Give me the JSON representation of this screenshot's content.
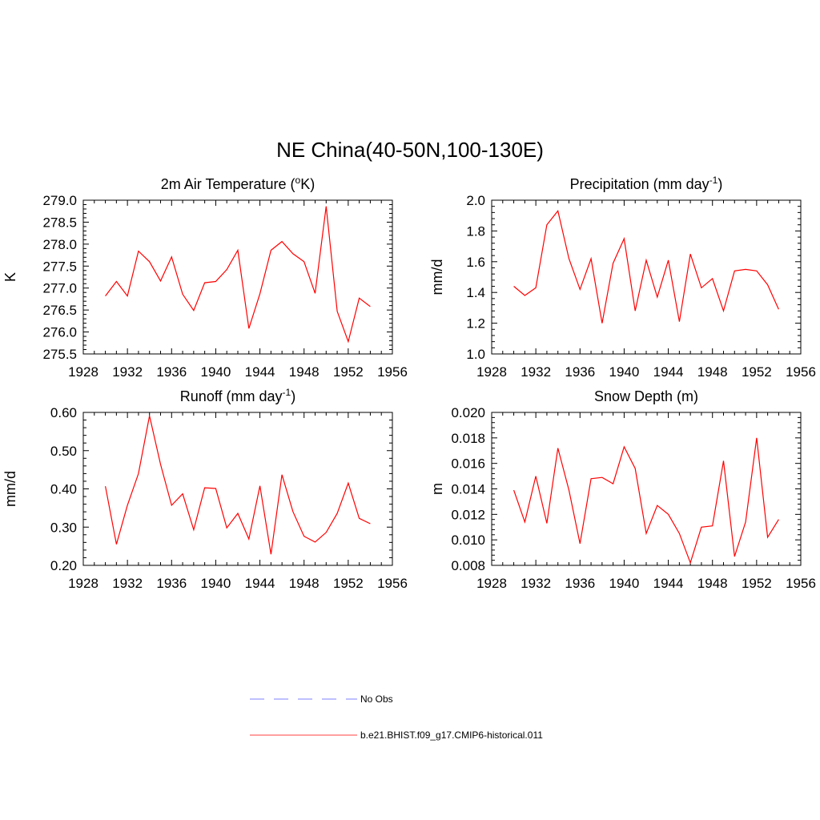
{
  "figure": {
    "title": "NE China(40-50N,100-130E)"
  },
  "legend": [
    {
      "label": "No Obs",
      "color": "#9999ff",
      "style": "dashed"
    },
    {
      "label": "b.e21.BHIST.f09_g17.CMIP6-historical.011",
      "color": "#ff0000",
      "style": "solid"
    }
  ],
  "chart_data": [
    {
      "type": "line",
      "title": "2m Air Temperature (",
      "title_sup": "o",
      "title_tail": "K)",
      "ylabel": "K",
      "xlim": [
        1928,
        1956
      ],
      "ylim": [
        275.5,
        279.0
      ],
      "xticks": [
        1928,
        1932,
        1936,
        1940,
        1944,
        1948,
        1952,
        1956
      ],
      "xtick_labels": [
        "1928",
        "1932",
        "1936",
        "1940",
        "1944",
        "1948",
        "1952",
        "1956"
      ],
      "yticks": [
        275.5,
        276.0,
        276.5,
        277.0,
        277.5,
        278.0,
        278.5,
        279.0
      ],
      "ytick_labels": [
        "275.5",
        "276.0",
        "276.5",
        "277.0",
        "277.5",
        "278.0",
        "278.5",
        "279.0"
      ],
      "series": [
        {
          "name": "b.e21.BHIST.f09_g17.CMIP6-historical.011",
          "color": "#ff0000",
          "x": [
            1930,
            1931,
            1932,
            1933,
            1934,
            1935,
            1936,
            1937,
            1938,
            1939,
            1940,
            1941,
            1942,
            1943,
            1944,
            1945,
            1946,
            1947,
            1948,
            1949,
            1950,
            1951,
            1952,
            1953,
            1954
          ],
          "values": [
            276.82,
            277.15,
            276.82,
            277.84,
            277.6,
            277.16,
            277.71,
            276.86,
            276.49,
            277.12,
            277.15,
            277.42,
            277.86,
            276.08,
            276.87,
            277.86,
            278.06,
            277.78,
            277.6,
            276.88,
            278.86,
            276.47,
            275.78,
            276.77,
            276.58
          ]
        }
      ]
    },
    {
      "type": "line",
      "title": "Precipitation (mm day",
      "title_sup": "-1",
      "title_tail": ")",
      "ylabel": "mm/d",
      "xlim": [
        1928,
        1956
      ],
      "ylim": [
        1.0,
        2.0
      ],
      "xticks": [
        1928,
        1932,
        1936,
        1940,
        1944,
        1948,
        1952,
        1956
      ],
      "xtick_labels": [
        "1928",
        "1932",
        "1936",
        "1940",
        "1944",
        "1948",
        "1952",
        "1956"
      ],
      "yticks": [
        1.0,
        1.2,
        1.4,
        1.6,
        1.8,
        2.0
      ],
      "ytick_labels": [
        "1.0",
        "1.2",
        "1.4",
        "1.6",
        "1.8",
        "2.0"
      ],
      "series": [
        {
          "name": "b.e21.BHIST.f09_g17.CMIP6-historical.011",
          "color": "#ff0000",
          "x": [
            1930,
            1931,
            1932,
            1933,
            1934,
            1935,
            1936,
            1937,
            1938,
            1939,
            1940,
            1941,
            1942,
            1943,
            1944,
            1945,
            1946,
            1947,
            1948,
            1949,
            1950,
            1951,
            1952,
            1953,
            1954
          ],
          "values": [
            1.44,
            1.38,
            1.43,
            1.84,
            1.93,
            1.62,
            1.42,
            1.62,
            1.2,
            1.59,
            1.75,
            1.28,
            1.61,
            1.37,
            1.61,
            1.21,
            1.65,
            1.43,
            1.49,
            1.28,
            1.54,
            1.55,
            1.54,
            1.45,
            1.29
          ]
        }
      ]
    },
    {
      "type": "line",
      "title": "Runoff (mm day",
      "title_sup": "-1",
      "title_tail": ")",
      "ylabel": "mm/d",
      "xlim": [
        1928,
        1956
      ],
      "ylim": [
        0.2,
        0.6
      ],
      "xticks": [
        1928,
        1932,
        1936,
        1940,
        1944,
        1948,
        1952,
        1956
      ],
      "xtick_labels": [
        "1928",
        "1932",
        "1936",
        "1940",
        "1944",
        "1948",
        "1952",
        "1956"
      ],
      "yticks": [
        0.2,
        0.3,
        0.4,
        0.5,
        0.6
      ],
      "ytick_labels": [
        "0.20",
        "0.30",
        "0.40",
        "0.50",
        "0.60"
      ],
      "series": [
        {
          "name": "b.e21.BHIST.f09_g17.CMIP6-historical.011",
          "color": "#ff0000",
          "x": [
            1930,
            1931,
            1932,
            1933,
            1934,
            1935,
            1936,
            1937,
            1938,
            1939,
            1940,
            1941,
            1942,
            1943,
            1944,
            1945,
            1946,
            1947,
            1948,
            1949,
            1950,
            1951,
            1952,
            1953,
            1954
          ],
          "values": [
            0.407,
            0.255,
            0.357,
            0.44,
            0.591,
            0.464,
            0.357,
            0.387,
            0.293,
            0.403,
            0.401,
            0.298,
            0.336,
            0.269,
            0.408,
            0.229,
            0.437,
            0.34,
            0.276,
            0.261,
            0.286,
            0.336,
            0.415,
            0.323,
            0.309
          ]
        }
      ]
    },
    {
      "type": "line",
      "title": "Snow Depth (m)",
      "title_sup": "",
      "title_tail": "",
      "ylabel": "m",
      "xlim": [
        1928,
        1956
      ],
      "ylim": [
        0.008,
        0.02
      ],
      "xticks": [
        1928,
        1932,
        1936,
        1940,
        1944,
        1948,
        1952,
        1956
      ],
      "xtick_labels": [
        "1928",
        "1932",
        "1936",
        "1940",
        "1944",
        "1948",
        "1952",
        "1956"
      ],
      "yticks": [
        0.008,
        0.01,
        0.012,
        0.014,
        0.016,
        0.018,
        0.02
      ],
      "ytick_labels": [
        "0.008",
        "0.010",
        "0.012",
        "0.014",
        "0.016",
        "0.018",
        "0.020"
      ],
      "series": [
        {
          "name": "b.e21.BHIST.f09_g17.CMIP6-historical.011",
          "color": "#ff0000",
          "x": [
            1930,
            1931,
            1932,
            1933,
            1934,
            1935,
            1936,
            1937,
            1938,
            1939,
            1940,
            1941,
            1942,
            1943,
            1944,
            1945,
            1946,
            1947,
            1948,
            1949,
            1950,
            1951,
            1952,
            1953,
            1954
          ],
          "values": [
            0.0139,
            0.0114,
            0.015,
            0.0113,
            0.0172,
            0.0139,
            0.0097,
            0.0148,
            0.0149,
            0.0144,
            0.0173,
            0.0156,
            0.0105,
            0.0127,
            0.012,
            0.0105,
            0.0082,
            0.011,
            0.0111,
            0.0162,
            0.0087,
            0.0114,
            0.018,
            0.0102,
            0.0116
          ]
        }
      ]
    }
  ]
}
